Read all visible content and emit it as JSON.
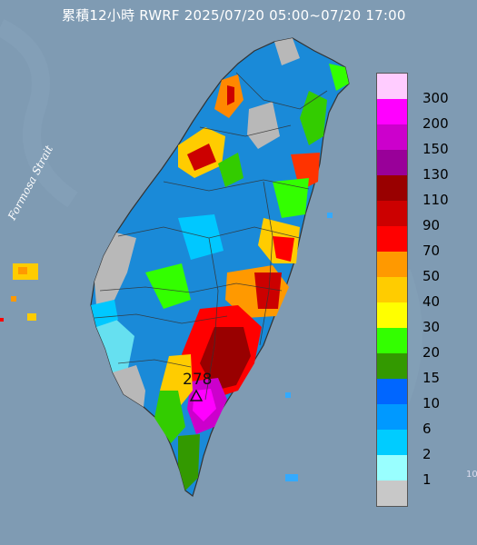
{
  "map": {
    "title": "累積12小時 RWRF 2025/07/20 05:00~07/20 17:00",
    "strait_label": "Formosa Strait",
    "peak_value": "278",
    "edge_text": "10",
    "colors": {
      "sea": "#7f9bb3",
      "land_no_rain": "#b8b8b8"
    }
  },
  "legend": [
    {
      "label": "300",
      "color": "#ffccff"
    },
    {
      "label": "200",
      "color": "#ff00ff"
    },
    {
      "label": "150",
      "color": "#cc00cc"
    },
    {
      "label": "130",
      "color": "#990099"
    },
    {
      "label": "110",
      "color": "#990000"
    },
    {
      "label": "90",
      "color": "#cc0000"
    },
    {
      "label": "70",
      "color": "#ff0000"
    },
    {
      "label": "50",
      "color": "#ff9900"
    },
    {
      "label": "40",
      "color": "#ffcc00"
    },
    {
      "label": "30",
      "color": "#ffff00"
    },
    {
      "label": "20",
      "color": "#33ff00"
    },
    {
      "label": "15",
      "color": "#339900"
    },
    {
      "label": "10",
      "color": "#0066ff"
    },
    {
      "label": "6",
      "color": "#0099ff"
    },
    {
      "label": "2",
      "color": "#00ccff"
    },
    {
      "label": "1",
      "color": "#99ffff"
    },
    {
      "label": "",
      "color": "#c8c8c8"
    }
  ]
}
